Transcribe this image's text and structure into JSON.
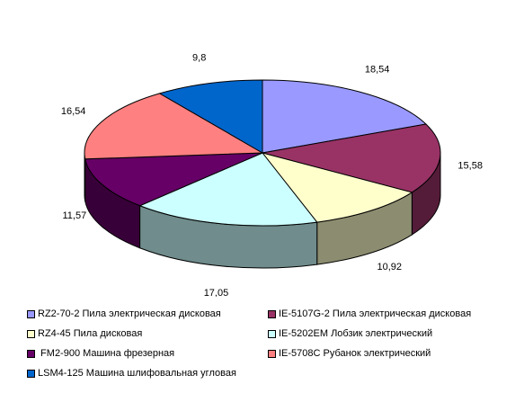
{
  "chart_data": {
    "type": "pie",
    "style": "3d-exploded",
    "title": "",
    "legend_position": "bottom",
    "categories": [
      "RZ2-70-2 Пила электрическая дисковая",
      "IE-5107G-2 Пила электрическая дисковая",
      "RZ4-45 Пила дисковая",
      "IE-5202EM Лобзик электрический",
      " FM2-900 Машина фрезерная",
      "IE-5708C Рубанок электрический",
      "LSM4-125 Машина шлифовальная угловая"
    ],
    "values": [
      18.54,
      15.58,
      10.92,
      17.05,
      11.57,
      16.54,
      9.8
    ],
    "value_labels": [
      "18,54",
      "15,58",
      "10,92",
      "17,05",
      "11,57",
      "16,54",
      "9,8"
    ],
    "colors": [
      "#9999ff",
      "#993366",
      "#ffffcc",
      "#ccffff",
      "#660066",
      "#ff8080",
      "#0066cc"
    ]
  }
}
